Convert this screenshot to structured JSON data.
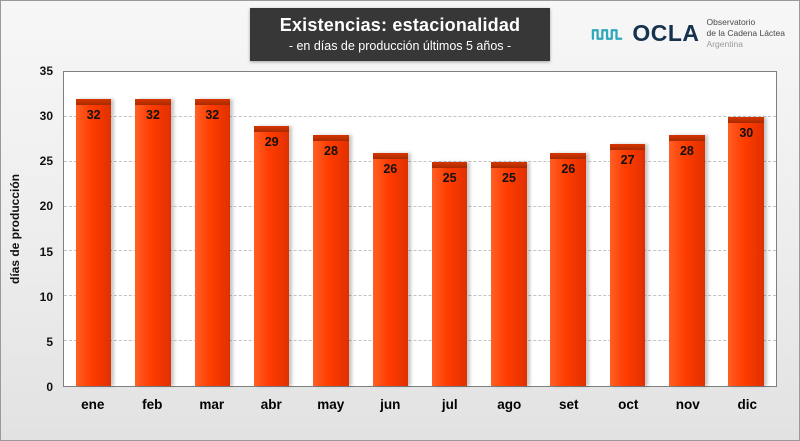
{
  "header": {
    "title": "Existencias: estacionalidad",
    "subtitle": "- en días de producción últimos 5 años -"
  },
  "logo": {
    "wordmark": "OCLA",
    "tagline_line1": "Observatorio",
    "tagline_line2": "de la Cadena Láctea",
    "tagline_line3": "Argentina"
  },
  "chart_data": {
    "type": "bar",
    "title": "Existencias: estacionalidad",
    "subtitle": "- en días de producción últimos 5 años -",
    "categories": [
      "ene",
      "feb",
      "mar",
      "abr",
      "may",
      "jun",
      "jul",
      "ago",
      "set",
      "oct",
      "nov",
      "dic"
    ],
    "values": [
      32,
      32,
      32,
      29,
      28,
      26,
      25,
      25,
      26,
      27,
      28,
      30
    ],
    "xlabel": "",
    "ylabel": "días de producción",
    "ylim": [
      0,
      35
    ],
    "ytick_step": 5,
    "grid": "horizontal-dashed",
    "legend": "none",
    "colors": {
      "bar": "#FF3C00",
      "bar_cap": "#A72A00",
      "value_label": "#111111",
      "title_box_bg": "#373737",
      "logo_wave": "#2FA8BC"
    }
  }
}
